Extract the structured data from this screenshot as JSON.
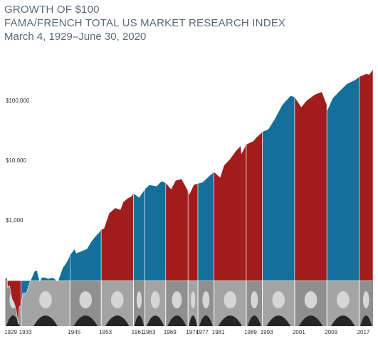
{
  "title": "GROWTH OF $100",
  "subtitle": "FAMA/FRENCH TOTAL US MARKET RESEARCH INDEX",
  "date_range": "March 4, 1929–June 30, 2020",
  "colors": {
    "republican": "#a11d1d",
    "democrat": "#14709a",
    "portrait_band": "#9a9a9a"
  },
  "chart_data": {
    "type": "area",
    "title": "GROWTH OF $100",
    "y_scale": "log",
    "ylim": [
      30,
      400000
    ],
    "y_ticks": [
      {
        "value": 1000,
        "label": "$1,000"
      },
      {
        "value": 10000,
        "label": "$10,000"
      },
      {
        "value": 100000,
        "label": "$100,000"
      }
    ],
    "x_range": [
      1929.17,
      2020.5
    ],
    "start_labels": [
      "1929",
      "1933",
      "1945",
      "1953",
      "1961",
      "1963",
      "1969",
      "1974",
      "1977",
      "1981",
      "1989",
      "1993",
      "2001",
      "2009",
      "2017"
    ],
    "terms": [
      {
        "start": 1929.17,
        "end": 1933.17,
        "party": "republican",
        "portrait": "president-hoover"
      },
      {
        "start": 1933.17,
        "end": 1945.29,
        "party": "democrat",
        "portrait": "president-fdr"
      },
      {
        "start": 1945.29,
        "end": 1953.05,
        "party": "democrat",
        "portrait": "president-truman"
      },
      {
        "start": 1953.05,
        "end": 1961.05,
        "party": "republican",
        "portrait": "president-eisenhower"
      },
      {
        "start": 1961.05,
        "end": 1963.89,
        "party": "democrat",
        "portrait": "president-kennedy"
      },
      {
        "start": 1963.89,
        "end": 1969.05,
        "party": "democrat",
        "portrait": "president-johnson"
      },
      {
        "start": 1969.05,
        "end": 1974.6,
        "party": "republican",
        "portrait": "president-nixon"
      },
      {
        "start": 1974.6,
        "end": 1977.05,
        "party": "republican",
        "portrait": "president-ford"
      },
      {
        "start": 1977.05,
        "end": 1981.05,
        "party": "democrat",
        "portrait": "president-carter"
      },
      {
        "start": 1981.05,
        "end": 1989.05,
        "party": "republican",
        "portrait": "president-reagan"
      },
      {
        "start": 1989.05,
        "end": 1993.05,
        "party": "republican",
        "portrait": "president-bush-sr"
      },
      {
        "start": 1993.05,
        "end": 2001.05,
        "party": "democrat",
        "portrait": "president-clinton"
      },
      {
        "start": 2001.05,
        "end": 2009.05,
        "party": "republican",
        "portrait": "president-bush-jr"
      },
      {
        "start": 2009.05,
        "end": 2017.05,
        "party": "democrat",
        "portrait": "president-obama"
      },
      {
        "start": 2017.05,
        "end": 2020.5,
        "party": "republican",
        "portrait": "president-trump"
      }
    ],
    "series": [
      {
        "x": [
          1929.17,
          1929.6,
          1929.85,
          1930.3,
          1930.9,
          1931.5,
          1932.0,
          1932.45,
          1932.7,
          1933.17,
          1933.6,
          1934.5,
          1935.3,
          1936.5,
          1937.1,
          1937.8,
          1938.3,
          1939.0,
          1940.0,
          1941.0,
          1942.3,
          1943.5,
          1944.5,
          1945.29,
          1946.4,
          1946.9,
          1948.0,
          1949.5,
          1950.5,
          1951.5,
          1952.5,
          1953.05,
          1953.7,
          1955.0,
          1956.5,
          1957.8,
          1958.5,
          1959.5,
          1960.5,
          1961.05,
          1962.45,
          1963.89,
          1965.0,
          1966.8,
          1968.0,
          1969.05,
          1970.4,
          1971.5,
          1973.0,
          1974.6,
          1974.9,
          1976.0,
          1977.05,
          1978.2,
          1980.0,
          1981.05,
          1982.55,
          1983.5,
          1985.0,
          1986.5,
          1987.7,
          1987.85,
          1989.05,
          1990.8,
          1991.5,
          1993.05,
          1994.5,
          1996.0,
          1998.0,
          2000.0,
          2001.05,
          2002.7,
          2004.0,
          2006.0,
          2007.8,
          2009.05,
          2009.2,
          2010.5,
          2012.0,
          2014.0,
          2016.0,
          2017.05,
          2018.9,
          2019.5,
          2020.2,
          2020.5
        ],
        "y": [
          100,
          115,
          75,
          80,
          48,
          40,
          30,
          18,
          35,
          38,
          60,
          60,
          90,
          140,
          145,
          95,
          110,
          110,
          105,
          110,
          95,
          160,
          200,
          260,
          330,
          280,
          300,
          330,
          430,
          530,
          620,
          700,
          720,
          1300,
          1600,
          1500,
          2000,
          2300,
          2500,
          2800,
          2400,
          3300,
          3900,
          3700,
          4500,
          4200,
          3300,
          4600,
          4900,
          3100,
          2700,
          3900,
          4100,
          4300,
          5600,
          6400,
          5200,
          8200,
          10500,
          14500,
          17500,
          13000,
          18500,
          21000,
          24000,
          30000,
          33000,
          48000,
          85000,
          120000,
          115000,
          78000,
          100000,
          125000,
          140000,
          85000,
          70000,
          110000,
          140000,
          190000,
          220000,
          250000,
          280000,
          270000,
          310000,
          330000
        ]
      }
    ]
  }
}
